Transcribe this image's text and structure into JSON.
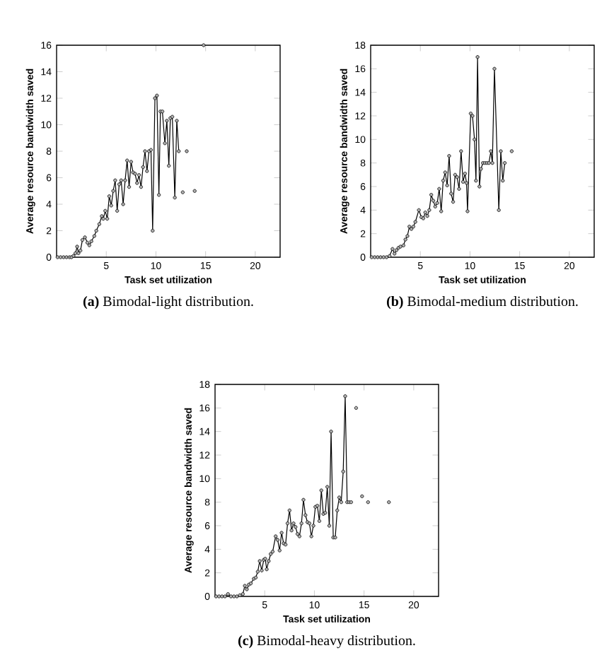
{
  "chart_data": [
    {
      "type": "line",
      "title": "**(a)** Bimodal-light distribution.",
      "xlabel": "Task set utilization",
      "ylabel": "Average resource bandwidth saved",
      "xlim": [
        0,
        22.5
      ],
      "ylim": [
        0,
        16
      ],
      "xticks": [
        5,
        10,
        15,
        20
      ],
      "yticks": [
        0,
        2,
        4,
        6,
        8,
        10,
        12,
        14,
        16
      ],
      "marker": "circle",
      "line_style": "solid",
      "grid": false,
      "series": [
        {
          "color": "#000000",
          "x": [
            0.1,
            0.4,
            0.7,
            1.0,
            1.3,
            1.5,
            1.7,
            1.9,
            2.07,
            2.2,
            2.4,
            2.6,
            2.85,
            3.1,
            3.3,
            3.5,
            3.8,
            4.0,
            4.3,
            4.55,
            4.7,
            4.9,
            5.1,
            5.3,
            5.5,
            5.7,
            5.9,
            6.1,
            6.3,
            6.5,
            6.7,
            6.9,
            7.1,
            7.3,
            7.5,
            7.7,
            7.9,
            8.1,
            8.3,
            8.5,
            8.7,
            8.9,
            9.1,
            9.3,
            9.5,
            9.67,
            9.9,
            10.1,
            10.3,
            10.45,
            10.65,
            10.9,
            11.1,
            11.3,
            11.45,
            11.65,
            11.9,
            12.1,
            12.3
          ],
          "values": [
            0,
            0,
            0,
            0,
            0,
            0,
            0.1,
            0.3,
            0.8,
            0.3,
            0.5,
            1.3,
            1.5,
            1.1,
            0.9,
            1.2,
            1.6,
            2.0,
            2.5,
            3.1,
            2.9,
            3.5,
            2.9,
            4.6,
            3.9,
            5.0,
            5.8,
            3.5,
            5.5,
            5.8,
            4.0,
            5.8,
            7.3,
            5.3,
            7.2,
            6.4,
            6.3,
            5.6,
            6.2,
            5.3,
            6.8,
            8.0,
            6.5,
            8.0,
            8.1,
            2.0,
            12.0,
            12.2,
            4.7,
            11.0,
            11.0,
            8.6,
            10.3,
            6.9,
            10.5,
            10.6,
            4.5,
            10.3,
            8.0
          ]
        },
        {
          "type": "scatter",
          "color": "#000000",
          "x": [
            12.7,
            13.1,
            13.9,
            14.8
          ],
          "values": [
            4.9,
            8.0,
            5.0,
            16.0
          ]
        }
      ]
    },
    {
      "type": "line",
      "title": "**(b)** Bimodal-medium distribution.",
      "xlabel": "Task set utilization",
      "ylabel": "Average resource bandwidth saved",
      "xlim": [
        0,
        22.5
      ],
      "ylim": [
        0,
        18
      ],
      "xticks": [
        5,
        10,
        15,
        20
      ],
      "yticks": [
        0,
        2,
        4,
        6,
        8,
        10,
        12,
        14,
        16,
        18
      ],
      "marker": "circle",
      "line_style": "solid",
      "grid": false,
      "series": [
        {
          "color": "#000000",
          "x": [
            0.1,
            0.4,
            0.7,
            1.0,
            1.3,
            1.6,
            1.9,
            2.2,
            2.4,
            2.6,
            2.8,
            3.0,
            3.3,
            3.5,
            3.7,
            3.9,
            4.1,
            4.3,
            4.5,
            4.85,
            5.1,
            5.3,
            5.5,
            5.7,
            5.9,
            6.1,
            6.3,
            6.5,
            6.7,
            6.9,
            7.1,
            7.3,
            7.5,
            7.7,
            7.9,
            8.1,
            8.3,
            8.5,
            8.7,
            8.9,
            9.1,
            9.3,
            9.5,
            9.65,
            9.75,
            10.07,
            10.25,
            10.45,
            10.6,
            10.76,
            10.95,
            11.1,
            11.3,
            11.5,
            11.7,
            11.9,
            12.1,
            12.25,
            12.46,
            12.9,
            13.1,
            13.3,
            13.5
          ],
          "values": [
            0,
            0,
            0,
            0,
            0,
            0,
            0.1,
            0.7,
            0.3,
            0.6,
            0.8,
            0.9,
            1.0,
            1.5,
            1.8,
            2.6,
            2.4,
            2.6,
            3.0,
            4.0,
            3.4,
            3.3,
            3.8,
            3.5,
            4.0,
            5.3,
            4.8,
            4.3,
            4.6,
            5.8,
            3.9,
            6.5,
            7.2,
            6.1,
            8.6,
            5.4,
            4.7,
            7.0,
            6.8,
            5.8,
            9.0,
            6.4,
            7.1,
            6.3,
            3.9,
            12.2,
            12.0,
            10.0,
            6.5,
            17.0,
            6.0,
            7.5,
            8.0,
            8.0,
            8.0,
            8.0,
            9.0,
            8.0,
            16.0,
            4.0,
            9.0,
            6.5,
            8.0
          ]
        },
        {
          "type": "scatter",
          "color": "#000000",
          "x": [
            14.2
          ],
          "values": [
            9.0
          ]
        }
      ]
    },
    {
      "type": "line",
      "title": "**(c)** Bimodal-heavy distribution.",
      "xlabel": "Task set utilization",
      "ylabel": "Average resource bandwidth saved",
      "xlim": [
        0,
        22.5
      ],
      "ylim": [
        0,
        18
      ],
      "xticks": [
        5,
        10,
        15,
        20
      ],
      "yticks": [
        0,
        2,
        4,
        6,
        8,
        10,
        12,
        14,
        16,
        18
      ],
      "marker": "circle",
      "line_style": "solid",
      "grid": false,
      "series": [
        {
          "color": "#000000",
          "x": [
            0.1,
            0.4,
            0.7,
            1.0,
            1.3,
            1.6,
            1.9,
            2.2,
            2.5,
            2.8,
            3.0,
            3.2,
            3.4,
            3.6,
            3.9,
            4.1,
            4.3,
            4.5,
            4.7,
            4.9,
            5.05,
            5.2,
            5.4,
            5.6,
            5.8,
            6.1,
            6.3,
            6.5,
            6.7,
            6.9,
            7.1,
            7.3,
            7.5,
            7.7,
            7.9,
            8.1,
            8.3,
            8.5,
            8.7,
            8.9,
            9.1,
            9.3,
            9.5,
            9.7,
            9.9,
            10.1,
            10.3,
            10.5,
            10.7,
            10.9,
            11.1,
            11.3,
            11.5,
            11.68,
            11.9,
            12.1,
            12.3,
            12.5,
            12.7,
            12.9,
            13.1,
            13.3,
            13.5,
            13.7
          ],
          "values": [
            0,
            0,
            0,
            0,
            0.2,
            0,
            0,
            0,
            0.1,
            0.2,
            0.9,
            0.6,
            1.0,
            1.1,
            1.5,
            1.6,
            2.1,
            3.0,
            2.2,
            3.1,
            3.2,
            2.3,
            3.0,
            3.6,
            3.8,
            5.1,
            4.8,
            3.9,
            5.4,
            4.5,
            4.4,
            6.2,
            7.3,
            5.6,
            6.2,
            5.9,
            5.3,
            5.1,
            6.2,
            8.2,
            6.9,
            6.3,
            6.2,
            5.1,
            6.0,
            7.6,
            7.7,
            6.4,
            9.0,
            7.0,
            7.1,
            9.3,
            6.0,
            14.0,
            5.0,
            5.0,
            7.3,
            8.4,
            8.0,
            10.6,
            17.0,
            8.0,
            8.0,
            8.0
          ]
        },
        {
          "type": "scatter",
          "color": "#000000",
          "x": [
            14.2,
            14.8,
            15.4,
            17.5
          ],
          "values": [
            16.0,
            8.5,
            8.0,
            8.0
          ]
        }
      ]
    }
  ]
}
